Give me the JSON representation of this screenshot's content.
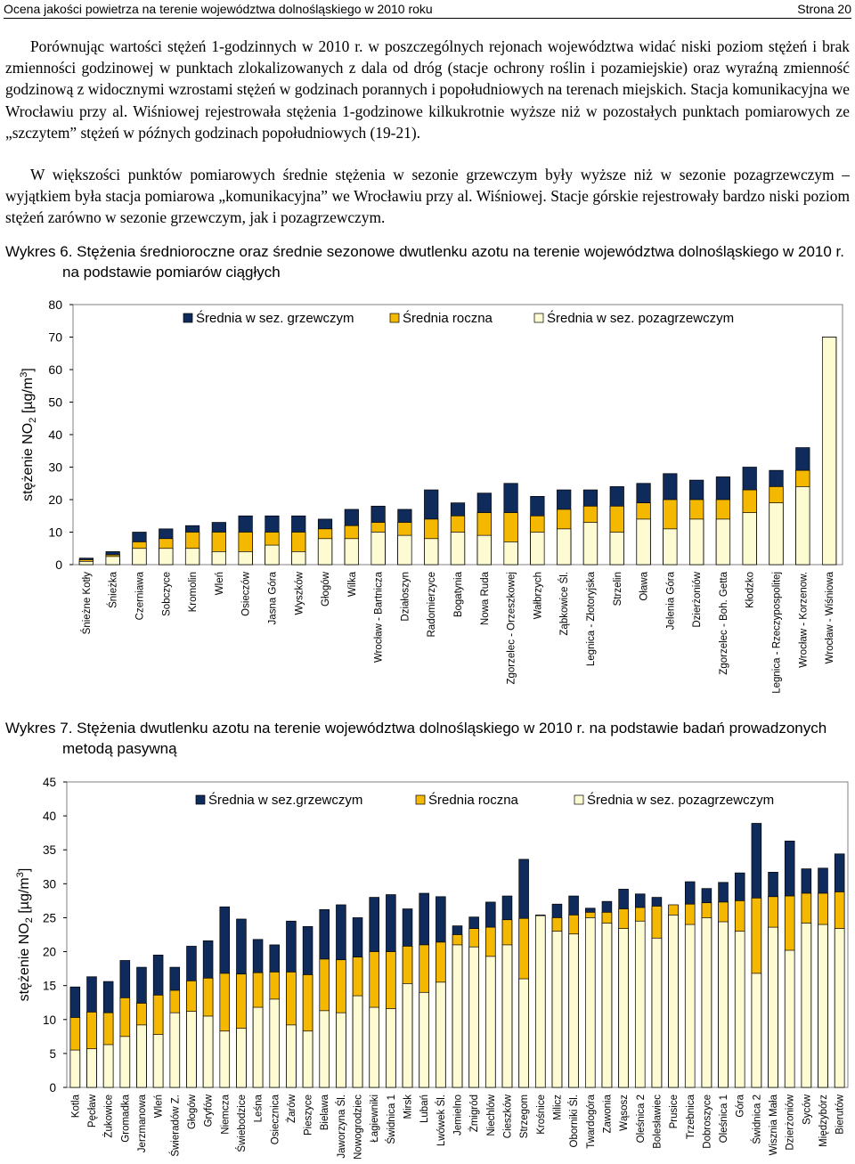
{
  "header": {
    "title": "Ocena jakości powietrza na terenie województwa dolnośląskiego w 2010 roku",
    "page": "Strona 20"
  },
  "text": {
    "p1": "Porównując wartości stężeń 1-godzinnych w 2010 r. w poszczególnych rejonach województwa widać niski poziom stężeń i brak zmienności godzinowej w punktach zlokalizowanych z dala od dróg (stacje ochrony roślin i pozamiejskie) oraz wyraźną zmienność godzinową z widocznymi wzrostami stężeń w godzinach porannych i popołudniowych na terenach miejskich. Stacja komunikacyjna we Wrocławiu przy al. Wiśniowej rejestrowała stężenia 1-godzinowe kilkukrotnie wyższe niż w pozostałych punktach pomiarowych ze „szczytem” stężeń w późnych godzinach popołudniowych (19-21).",
    "p2": "W większości punktów pomiarowych średnie stężenia w sezonie grzewczym były wyższe niż w sezonie pozagrzewczym – wyjątkiem była stacja pomiarowa „komunikacyjna” we Wrocławiu przy al. Wiśniowej. Stacje górskie rejestrowały bardzo niski poziom stężeń zarówno w sezonie grzewczym, jak i pozagrzewczym."
  },
  "captions": {
    "c6_line1": "Wykres 6. Stężenia średnioroczne oraz średnie sezonowe dwutlenku azotu na terenie województwa dolnośląskiego w 2010 r.",
    "c6_line2": "na podstawie pomiarów ciągłych",
    "c7_line1": "Wykres 7. Stężenia dwutlenku azotu na terenie województwa dolnośląskiego w 2010 r. na podstawie badań prowadzonych",
    "c7_line2": "metodą pasywną"
  },
  "colors": {
    "winter": "#0f2b5b",
    "annual": "#f5b800",
    "summer": "#fdfbd2",
    "frame": "#808080"
  },
  "chart_data": [
    {
      "type": "bar",
      "ylabel": "stężenie NO2 [µg/m3]",
      "ylim": [
        0,
        80
      ],
      "yticks": [
        0,
        10,
        20,
        30,
        40,
        50,
        60,
        70,
        80
      ],
      "grid": false,
      "legend_position": "top",
      "categories": [
        "Śnieżne Kotły",
        "Śnieżka",
        "Czerniawa",
        "Sobczyce",
        "Kromolin",
        "Wleń",
        "Osieczów",
        "Jasna Góra",
        "Wyszków",
        "Głogów",
        "Wilka",
        "Wrocław - Bartnicza",
        "Działoszyn",
        "Radomierzyce",
        "Bogatynia",
        "Nowa Ruda",
        "Zgorzelec - Orzeszkowej",
        "Wałbrzych",
        "Ząbkowice Śl.",
        "Legnica - Złotoryjska",
        "Strzelin",
        "Oława",
        "Jelenia Góra",
        "Dzierżoniów",
        "Zgorzelec - Boh. Getta",
        "Kłodzko",
        "Legnica - Rzeczypospolitej",
        "Wrocław - Korzenow.",
        "Wrocław - Wiśniowa"
      ],
      "series": [
        {
          "name": "Średnia w sez. grzewczym",
          "values": [
            2,
            4,
            10,
            11,
            12,
            13,
            15,
            15,
            15,
            14,
            17,
            18,
            17,
            23,
            19,
            22,
            25,
            21,
            23,
            23,
            24,
            25,
            28,
            26,
            27,
            30,
            29,
            36,
            70
          ]
        },
        {
          "name": "Średnia roczna",
          "values": [
            1.5,
            3,
            7,
            8,
            10,
            10,
            10,
            10,
            10,
            11,
            12,
            13,
            13,
            14,
            15,
            16,
            16,
            15,
            17,
            18,
            18,
            19,
            20,
            20,
            20,
            23,
            24,
            29,
            70
          ]
        },
        {
          "name": "Średnia w sez. pozagrzewczym",
          "values": [
            1,
            2.5,
            5,
            5,
            5,
            4,
            4,
            6,
            4,
            8,
            8,
            10,
            9,
            8,
            10,
            9,
            7,
            10,
            11,
            13,
            10,
            14,
            11,
            14,
            14,
            16,
            19,
            24,
            70
          ]
        }
      ]
    },
    {
      "type": "bar",
      "ylabel": "stężenie NO2 [µg/m3]",
      "ylim": [
        0,
        45
      ],
      "yticks": [
        0,
        5,
        10,
        15,
        20,
        25,
        30,
        35,
        40,
        45
      ],
      "grid": false,
      "legend_position": "top",
      "categories": [
        "Kotla",
        "Pęcław",
        "Żukowice",
        "Gromadka",
        "Jerzmanowa",
        "Wleń",
        "Świeradów Z.",
        "Głogów",
        "Gryfów",
        "Niemcza",
        "Świebodzice",
        "Leśna",
        "Osiecznica",
        "Żarów",
        "Pieszyce",
        "Bielawa",
        "Jaworzyna Śl.",
        "Nowogrodziec",
        "Łagiewniki",
        "Świdnica 1",
        "Mirsk",
        "Lubań",
        "Lwówek Śl.",
        "Jemielno",
        "Żmigród",
        "Niechlów",
        "Cieszków",
        "Strzegom",
        "Krośnice",
        "Milicz",
        "Oborniki Śl.",
        "Twardogóra",
        "Zawonia",
        "Wąsosz",
        "Oleśnica 2",
        "Bolesławiec",
        "Prusice",
        "Trzebnica",
        "Dobroszyce",
        "Oleśnica 1",
        "Góra",
        "Świdnica 2",
        "Wisznia Mała",
        "Dzierżoniów",
        "Syców",
        "Międzybórz",
        "Bierutów"
      ],
      "series": [
        {
          "name": "Średnia w sez.grzewczym",
          "values": [
            14.8,
            16.3,
            15.6,
            18.7,
            17.7,
            19.5,
            17.7,
            20.8,
            21.6,
            26.6,
            24.8,
            21.8,
            21.0,
            24.5,
            23.7,
            26.2,
            26.9,
            25.0,
            28.0,
            28.4,
            26.3,
            28.6,
            28.1,
            23.8,
            25.1,
            27.3,
            28.2,
            33.6,
            25.4,
            27.0,
            28.2,
            26.4,
            27.4,
            29.2,
            28.5,
            28.0,
            26.8,
            30.3,
            29.3,
            30.2,
            31.6,
            38.9,
            31.7,
            36.3,
            32.2,
            32.3,
            34.4
          ]
        },
        {
          "name": "Średnia roczna",
          "values": [
            10.3,
            11.1,
            11.0,
            13.2,
            12.4,
            13.6,
            14.3,
            15.7,
            16.1,
            16.8,
            16.7,
            16.9,
            17.0,
            17.0,
            16.6,
            18.9,
            18.8,
            19.2,
            20.0,
            20.0,
            20.8,
            21.0,
            21.4,
            22.5,
            23.4,
            23.6,
            24.7,
            24.9,
            25.0,
            25.0,
            25.4,
            25.8,
            25.8,
            26.3,
            26.5,
            26.7,
            26.9,
            27.0,
            27.2,
            27.3,
            27.5,
            27.9,
            28.1,
            28.2,
            28.6,
            28.6,
            28.8
          ]
        },
        {
          "name": "Średnia w sez. pozagrzewczym",
          "values": [
            5.5,
            5.7,
            6.3,
            7.5,
            9.2,
            7.8,
            11.0,
            11.2,
            10.5,
            8.3,
            8.7,
            11.8,
            13.0,
            9.2,
            8.3,
            11.3,
            11.0,
            13.5,
            11.8,
            11.6,
            15.3,
            14.0,
            15.5,
            21.0,
            20.7,
            19.3,
            21.0,
            16.0,
            25.3,
            23.0,
            22.6,
            25.0,
            24.2,
            23.4,
            24.5,
            22.0,
            25.4,
            24.0,
            25.0,
            24.4,
            23.0,
            16.8,
            23.6,
            20.2,
            24.2,
            24.0,
            23.4
          ]
        }
      ]
    }
  ]
}
